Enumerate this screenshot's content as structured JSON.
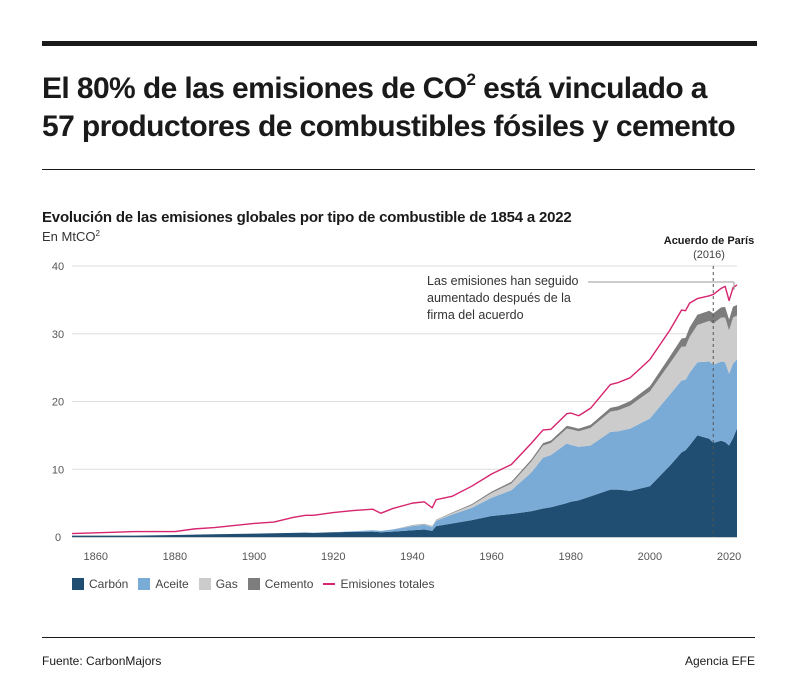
{
  "header": {
    "title_part1": "El 80% de las emisiones de CO",
    "title_sup": "2",
    "title_part2": " está vinculado a",
    "title_line2": "57 productores de combustibles fósiles y cemento"
  },
  "subtitle": "Evolución de las emisiones globales por tipo de combustible de 1854 a 2022",
  "unit_label": {
    "text": "En MtCO",
    "sup": "2"
  },
  "footer": {
    "source": "Fuente: CarbonMajors",
    "credit": "Agencia EFE"
  },
  "colors": {
    "coal": "#1f4e72",
    "oil": "#7aaad6",
    "gas": "#cccccc",
    "cement": "#7d7d7d",
    "total": "#d6246e",
    "grid": "#dddddd",
    "axis_text": "#555555"
  },
  "chart_data": {
    "type": "area",
    "stacked": true,
    "title": "Evolución de las emisiones globales por tipo de combustible de 1854 a 2022",
    "ylabel": "En MtCO2",
    "xlim": [
      1854,
      2022
    ],
    "ylim": [
      0,
      40
    ],
    "x_ticks": [
      1860,
      1880,
      1900,
      1920,
      1940,
      1960,
      1980,
      2000,
      2020
    ],
    "y_ticks": [
      0,
      10,
      20,
      30,
      40
    ],
    "grid": true,
    "legend_position": "bottom-left",
    "x": [
      1854,
      1870,
      1880,
      1885,
      1890,
      1900,
      1905,
      1910,
      1913,
      1915,
      1920,
      1925,
      1930,
      1932,
      1935,
      1940,
      1943,
      1945,
      1946,
      1950,
      1955,
      1960,
      1965,
      1970,
      1973,
      1975,
      1979,
      1980,
      1982,
      1985,
      1990,
      1992,
      1995,
      2000,
      2005,
      2008,
      2009,
      2010,
      2012,
      2015,
      2016,
      2018,
      2019,
      2020,
      2021,
      2022
    ],
    "series": [
      {
        "name": "Carbón",
        "values": [
          0.2,
          0.2,
          0.3,
          0.35,
          0.4,
          0.5,
          0.55,
          0.6,
          0.65,
          0.6,
          0.7,
          0.75,
          0.8,
          0.7,
          0.8,
          1.0,
          1.1,
          0.9,
          1.6,
          2.0,
          2.5,
          3.1,
          3.4,
          3.8,
          4.2,
          4.4,
          5.0,
          5.2,
          5.4,
          6.0,
          7.0,
          7.0,
          6.8,
          7.5,
          10.5,
          12.5,
          12.8,
          13.5,
          15.0,
          14.5,
          13.9,
          14.2,
          14.0,
          13.5,
          14.6,
          16.0
        ]
      },
      {
        "name": "Aceite",
        "values": [
          0,
          0,
          0,
          0,
          0,
          0,
          0,
          0,
          0,
          0,
          0,
          0.1,
          0.2,
          0.2,
          0.3,
          0.6,
          0.7,
          0.6,
          0.8,
          1.3,
          1.8,
          2.7,
          3.5,
          5.7,
          7.5,
          7.7,
          8.8,
          8.4,
          7.9,
          7.5,
          8.5,
          8.6,
          9.2,
          10.0,
          10.5,
          10.6,
          10.4,
          10.7,
          10.8,
          11.4,
          11.5,
          11.7,
          11.8,
          10.6,
          11.0,
          10.2
        ]
      },
      {
        "name": "Gas",
        "values": [
          0,
          0,
          0,
          0,
          0,
          0,
          0,
          0,
          0,
          0,
          0,
          0,
          0,
          0,
          0,
          0.1,
          0.1,
          0.1,
          0.1,
          0.2,
          0.4,
          0.7,
          1.0,
          1.6,
          1.8,
          1.8,
          2.2,
          2.3,
          2.3,
          2.6,
          3.0,
          3.1,
          3.4,
          4.0,
          4.6,
          5.0,
          4.9,
          5.3,
          5.5,
          6.0,
          6.1,
          6.5,
          6.6,
          6.4,
          6.8,
          6.5
        ]
      },
      {
        "name": "Cemento",
        "values": [
          0,
          0,
          0,
          0,
          0,
          0,
          0,
          0,
          0,
          0,
          0,
          0,
          0,
          0,
          0,
          0.05,
          0.05,
          0.05,
          0.05,
          0.1,
          0.15,
          0.2,
          0.25,
          0.3,
          0.35,
          0.35,
          0.4,
          0.4,
          0.4,
          0.45,
          0.55,
          0.6,
          0.65,
          0.75,
          1.0,
          1.2,
          1.3,
          1.4,
          1.5,
          1.5,
          1.5,
          1.5,
          1.55,
          1.6,
          1.6,
          1.55
        ]
      },
      {
        "name": "Emisiones totales",
        "type": "line",
        "values": [
          0.5,
          0.8,
          0.8,
          1.2,
          1.4,
          2.0,
          2.2,
          2.9,
          3.2,
          3.2,
          3.6,
          3.9,
          4.1,
          3.5,
          4.2,
          5.0,
          5.2,
          4.3,
          5.5,
          6.0,
          7.5,
          9.3,
          10.7,
          13.8,
          15.8,
          15.9,
          18.2,
          18.3,
          17.9,
          19.0,
          22.5,
          22.8,
          23.5,
          26.2,
          30.5,
          33.5,
          33.4,
          34.5,
          35.2,
          35.6,
          35.8,
          36.7,
          37.0,
          34.9,
          36.8,
          37.2
        ]
      }
    ],
    "annotations": [
      {
        "label": "Acuerdo de París",
        "sublabel": "(2016)",
        "x": 2016
      },
      {
        "label_lines": [
          "Las emisiones han seguido",
          "aumentado después de la",
          "firma del acuerdo"
        ],
        "x_range": [
          1992,
          2022
        ],
        "y": 38.7
      }
    ]
  }
}
